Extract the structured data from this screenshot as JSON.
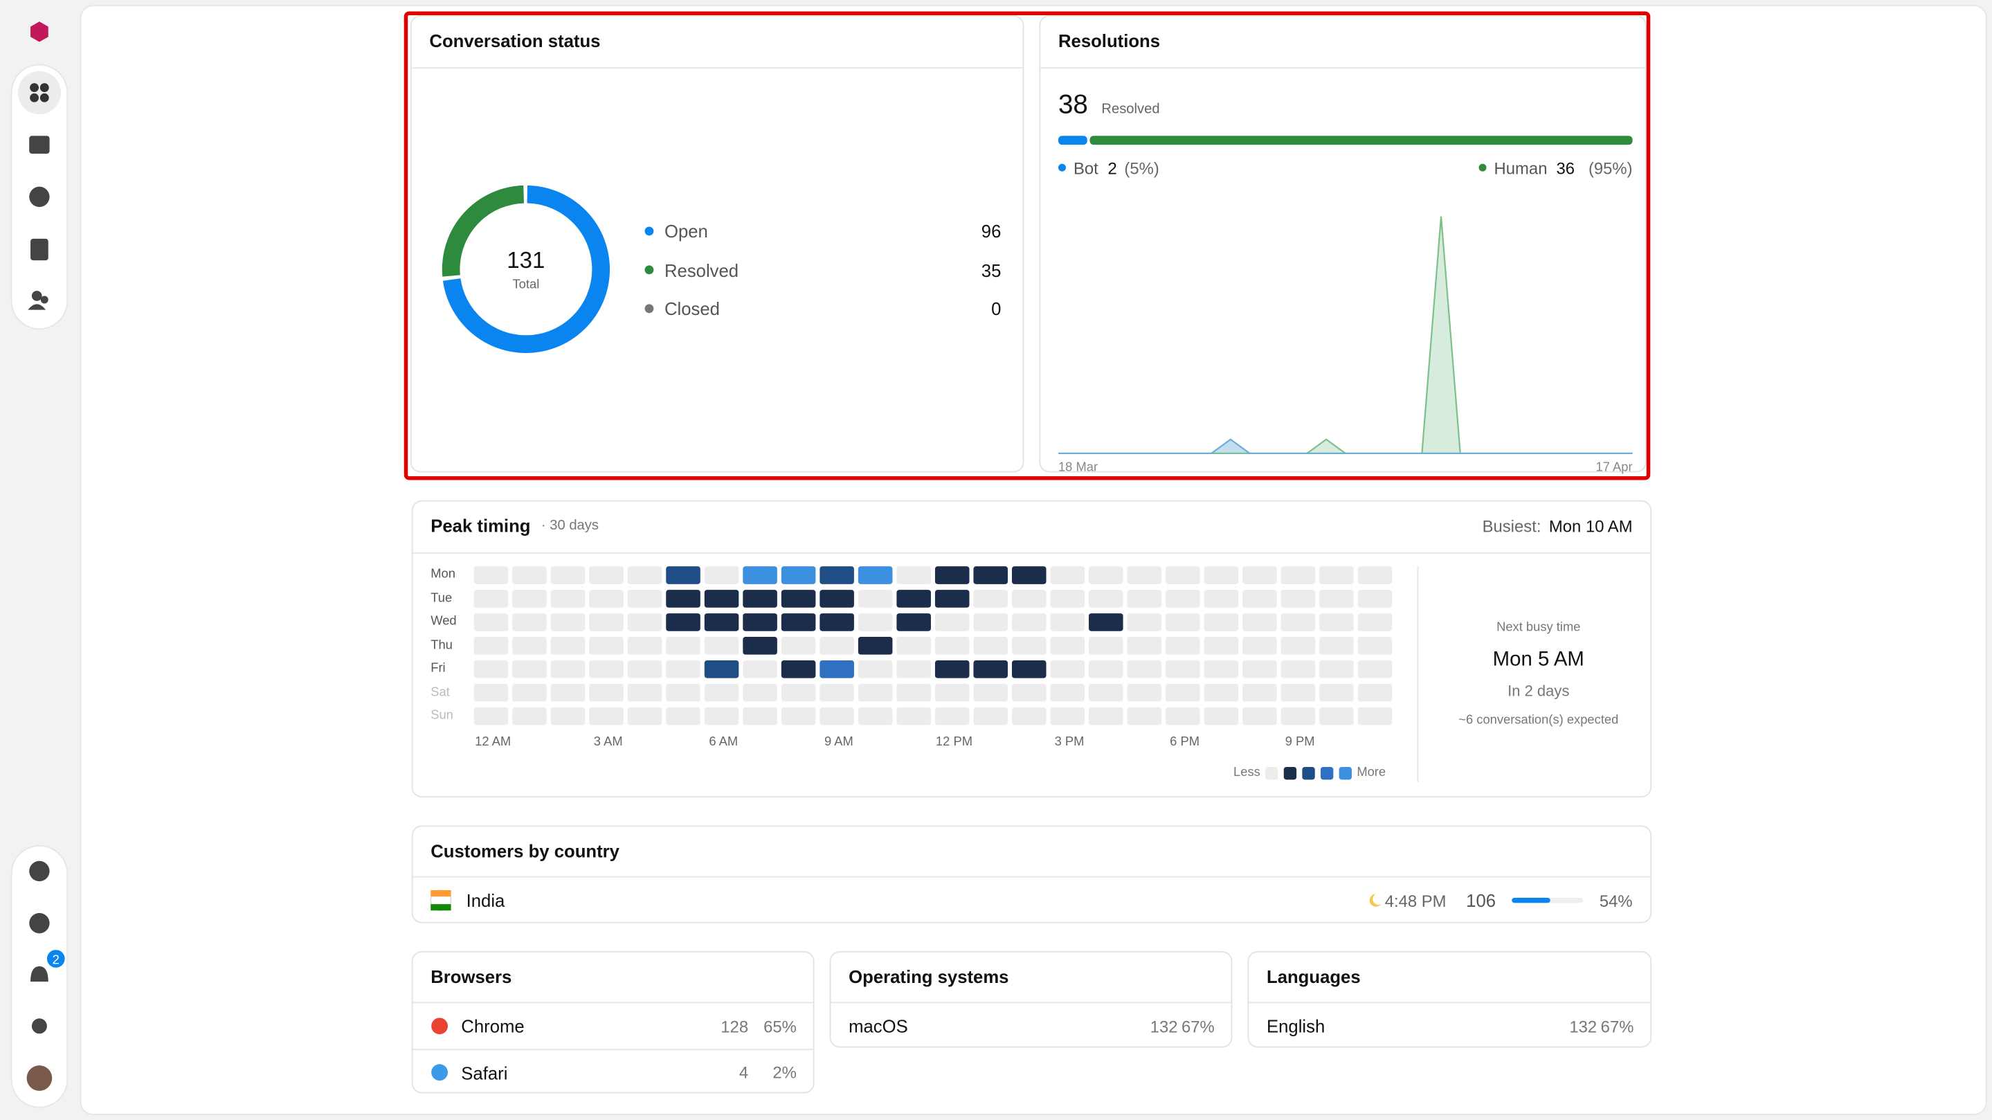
{
  "sidebar": {
    "notification_count": "2"
  },
  "conversation_status": {
    "title": "Conversation status",
    "total": 131,
    "total_label": "Total",
    "items": [
      {
        "name": "Open",
        "value": 96,
        "color": "#0a84ee"
      },
      {
        "name": "Resolved",
        "value": 35,
        "color": "#2e8b3e"
      },
      {
        "name": "Closed",
        "value": 0,
        "color": "#777777"
      }
    ]
  },
  "resolutions": {
    "title": "Resolutions",
    "total": 38,
    "total_label": "Resolved",
    "bot": {
      "name": "Bot",
      "value": 2,
      "share": "(5%)",
      "color": "#0a84ee"
    },
    "human": {
      "name": "Human",
      "value": 36,
      "share": "(95%)",
      "color": "#2e8b3e"
    },
    "chart": {
      "type": "area",
      "x_start": "18 Mar",
      "x_end": "17 Apr",
      "ylim": [
        0,
        35
      ],
      "bot_daily": [
        0,
        0,
        0,
        0,
        0,
        0,
        0,
        0,
        0,
        2,
        0,
        0,
        0,
        0,
        0,
        0,
        0,
        0,
        0,
        0,
        0,
        0,
        0,
        0,
        0,
        0,
        0,
        0,
        0,
        0,
        0
      ],
      "human_daily": [
        0,
        0,
        0,
        0,
        0,
        0,
        0,
        0,
        0,
        0,
        0,
        0,
        0,
        0,
        2,
        0,
        0,
        0,
        0,
        0,
        34,
        0,
        0,
        0,
        0,
        0,
        0,
        0,
        0,
        0,
        0
      ]
    }
  },
  "peak_timing": {
    "title": "Peak timing",
    "range_label": "· 30 days",
    "busiest_label": "Busiest:",
    "busiest": "Mon 10 AM",
    "days": [
      "Mon",
      "Tue",
      "Wed",
      "Thu",
      "Fri",
      "Sat",
      "Sun"
    ],
    "hours": [
      "12 AM",
      null,
      null,
      "3 AM",
      null,
      null,
      "6 AM",
      null,
      null,
      "9 AM",
      null,
      null,
      "12 PM",
      null,
      null,
      "3 PM",
      null,
      null,
      "6 PM",
      null,
      null,
      "9 PM",
      null,
      null
    ],
    "grid": [
      [
        0,
        0,
        0,
        0,
        0,
        2,
        0,
        4,
        4,
        2,
        4,
        0,
        1,
        1,
        1,
        0,
        0,
        0,
        0,
        0,
        0,
        0,
        0,
        0
      ],
      [
        0,
        0,
        0,
        0,
        0,
        1,
        1,
        1,
        1,
        1,
        0,
        1,
        1,
        0,
        0,
        0,
        0,
        0,
        0,
        0,
        0,
        0,
        0,
        0
      ],
      [
        0,
        0,
        0,
        0,
        0,
        1,
        1,
        1,
        1,
        1,
        0,
        1,
        0,
        0,
        0,
        0,
        1,
        0,
        0,
        0,
        0,
        0,
        0,
        0
      ],
      [
        0,
        0,
        0,
        0,
        0,
        0,
        0,
        1,
        0,
        0,
        1,
        0,
        0,
        0,
        0,
        0,
        0,
        0,
        0,
        0,
        0,
        0,
        0,
        0
      ],
      [
        0,
        0,
        0,
        0,
        0,
        0,
        2,
        0,
        1,
        3,
        0,
        0,
        1,
        1,
        1,
        0,
        0,
        0,
        0,
        0,
        0,
        0,
        0,
        0
      ],
      [
        0,
        0,
        0,
        0,
        0,
        0,
        0,
        0,
        0,
        0,
        0,
        0,
        0,
        0,
        0,
        0,
        0,
        0,
        0,
        0,
        0,
        0,
        0,
        0
      ],
      [
        0,
        0,
        0,
        0,
        0,
        0,
        0,
        0,
        0,
        0,
        0,
        0,
        0,
        0,
        0,
        0,
        0,
        0,
        0,
        0,
        0,
        0,
        0,
        0
      ]
    ],
    "level_colors": [
      "#ececec",
      "#1b2d4a",
      "#1e4e85",
      "#2f70c0",
      "#3d8fe0"
    ],
    "legend_less": "Less",
    "legend_more": "More",
    "next": {
      "label": "Next busy time",
      "value": "Mon 5 AM",
      "when": "In 2 days",
      "expected": "~6 conversation(s) expected"
    }
  },
  "countries": {
    "title": "Customers by country",
    "rows": [
      {
        "name": "India",
        "local_time": "4:48 PM",
        "count": 106,
        "share": {
          "value": 54,
          "label": "54%"
        }
      }
    ]
  },
  "browsers": {
    "title": "Browsers",
    "rows": [
      {
        "name": "Chrome",
        "count": 128,
        "share": "65%"
      },
      {
        "name": "Safari",
        "count": 4,
        "share": "2%"
      }
    ]
  },
  "operating_systems": {
    "title": "Operating systems",
    "rows": [
      {
        "name": "macOS",
        "count": 132,
        "share": "67%"
      }
    ]
  },
  "languages": {
    "title": "Languages",
    "rows": [
      {
        "name": "English",
        "count": 132,
        "share": "67%"
      }
    ]
  }
}
